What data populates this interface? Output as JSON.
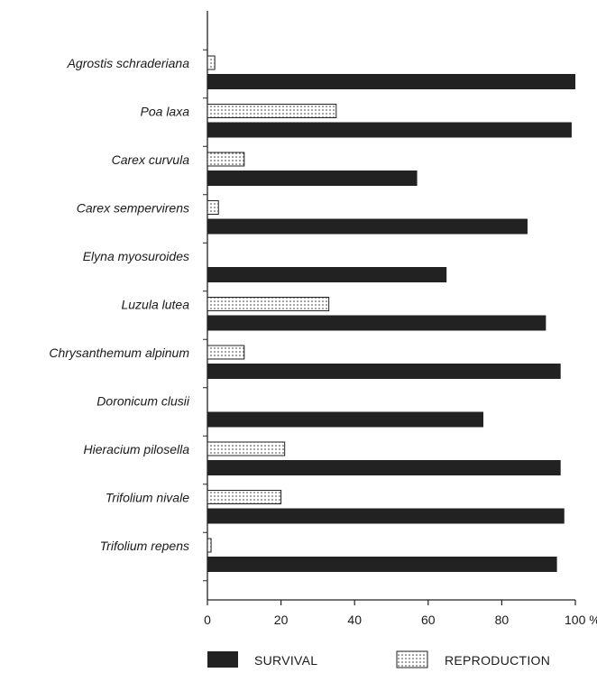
{
  "chart_data": {
    "type": "bar",
    "orientation": "horizontal",
    "categories": [
      "Agrostis schraderiana",
      "Poa laxa",
      "Carex curvula",
      "Carex sempervirens",
      "Elyna myosuroides",
      "Luzula lutea",
      "Chrysanthemum alpinum",
      "Doronicum clusii",
      "Hieracium pilosella",
      "Trifolium nivale",
      "Trifolium repens"
    ],
    "series": [
      {
        "name": "REPRODUCTION",
        "values": [
          2,
          35,
          10,
          3,
          0,
          33,
          10,
          0,
          21,
          20,
          1
        ],
        "color": "#ffffff",
        "pattern": "dotted"
      },
      {
        "name": "SURVIVAL",
        "values": [
          100,
          99,
          57,
          87,
          65,
          92,
          96,
          75,
          96,
          97,
          95
        ],
        "color": "#222222"
      }
    ],
    "xticks": [
      0,
      20,
      40,
      60,
      80,
      100
    ],
    "xtick_labels": [
      "0",
      "20",
      "40",
      "60",
      "80",
      "100 %"
    ],
    "xlim": [
      0,
      100
    ],
    "legend_placement": "bottom",
    "legend": [
      {
        "key": "survival",
        "label": "SURVIVAL"
      },
      {
        "key": "reproduction",
        "label": "REPRODUCTION"
      }
    ],
    "grid": false
  }
}
